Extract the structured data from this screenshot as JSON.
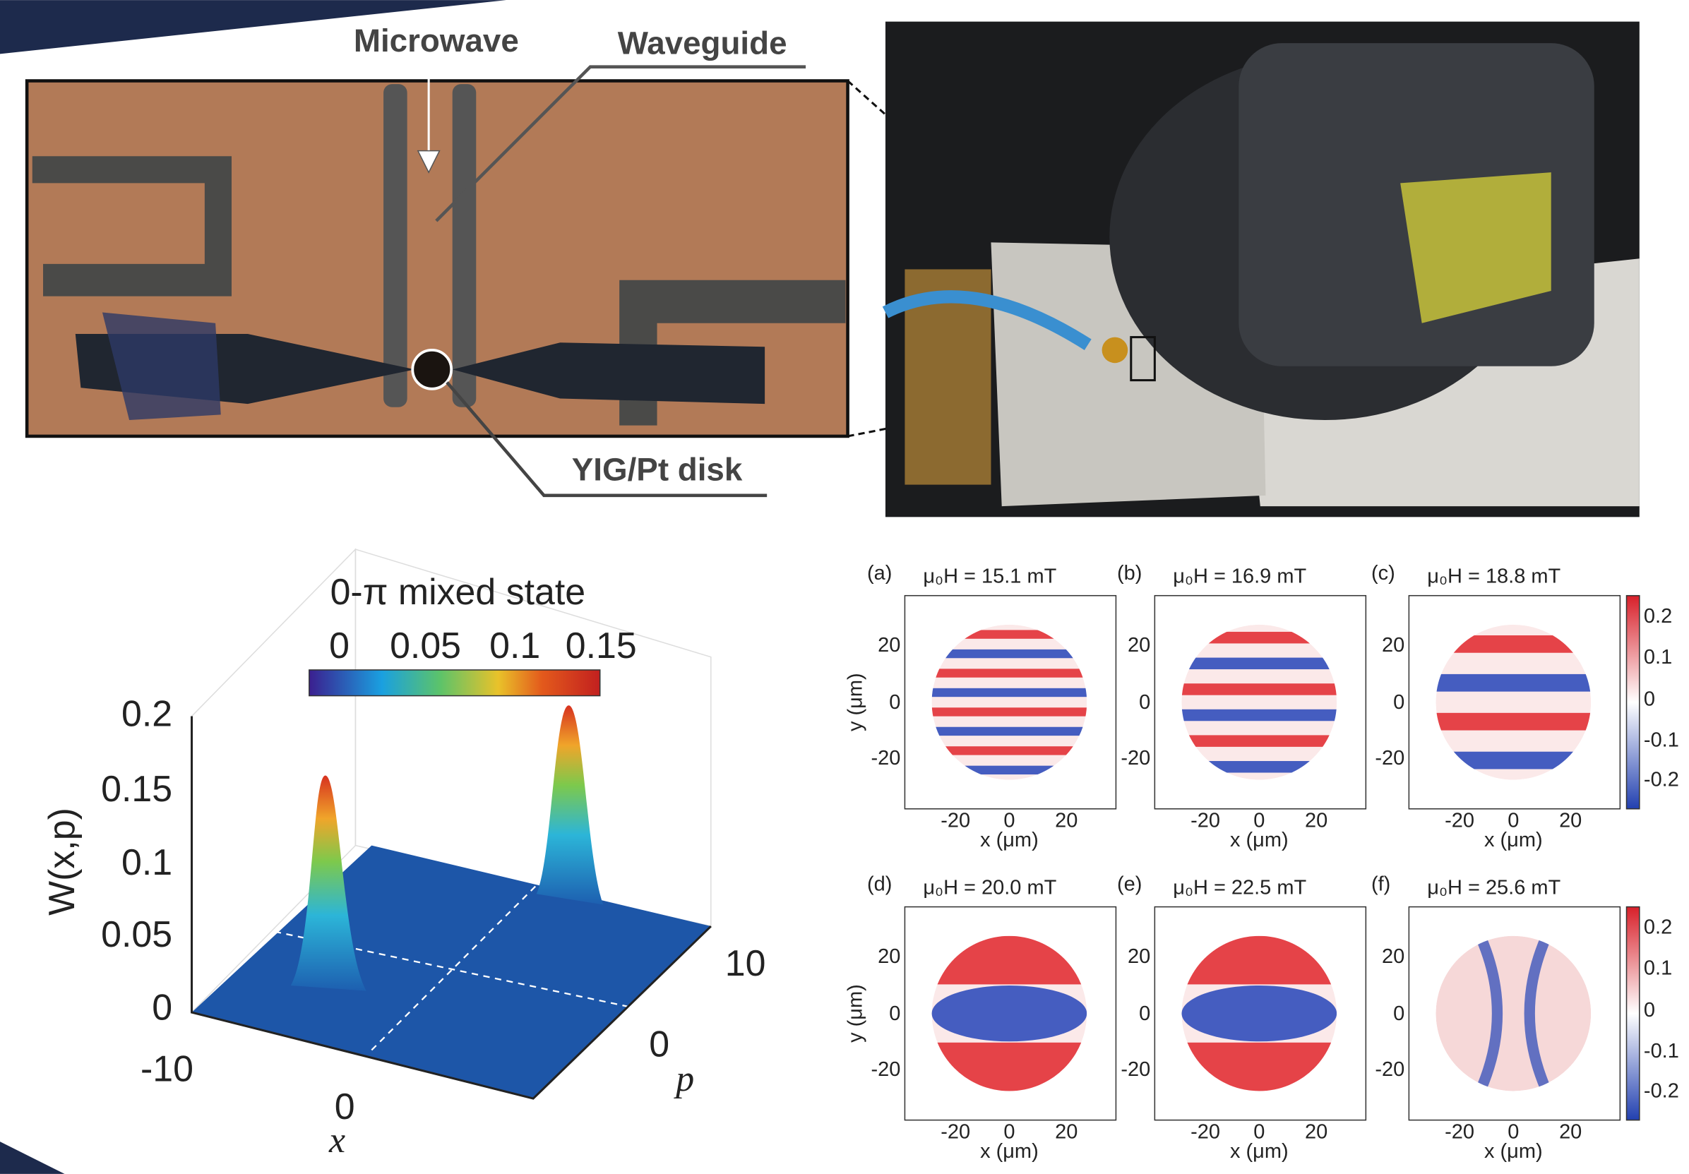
{
  "photo": {
    "labels": {
      "microwave": "Microwave",
      "waveguide": "Waveguide",
      "disk": "YIG/Pt disk"
    }
  },
  "wigner": {
    "title": "0-π mixed state",
    "colorbar_ticks": [
      "0",
      "0.05",
      "0.1",
      "0.15"
    ],
    "z_label": "W(x,p)",
    "z_ticks": [
      "0.2",
      "0.15",
      "0.1",
      "0.05",
      "0"
    ],
    "x_label": "x",
    "x_ticks": [
      "-10",
      "0"
    ],
    "p_label": "p",
    "p_ticks": [
      "10",
      "0"
    ]
  },
  "panels": [
    {
      "letter": "(a)",
      "field": "μ₀H = 15.1 mT"
    },
    {
      "letter": "(b)",
      "field": "μ₀H = 16.9 mT"
    },
    {
      "letter": "(c)",
      "field": "μ₀H = 18.8 mT"
    },
    {
      "letter": "(d)",
      "field": "μ₀H = 20.0 mT"
    },
    {
      "letter": "(e)",
      "field": "μ₀H = 22.5 mT"
    },
    {
      "letter": "(f)",
      "field": "μ₀H = 25.6 mT"
    }
  ],
  "axes": {
    "x_label": "x (μm)",
    "y_label": "y (μm)",
    "x_ticks": [
      "-20",
      "0",
      "20"
    ],
    "y_ticks": [
      "20",
      "0",
      "-20"
    ]
  },
  "colorbar": {
    "ticks": [
      "0.2",
      "0.1",
      "0",
      "-0.1",
      "-0.2"
    ]
  }
}
